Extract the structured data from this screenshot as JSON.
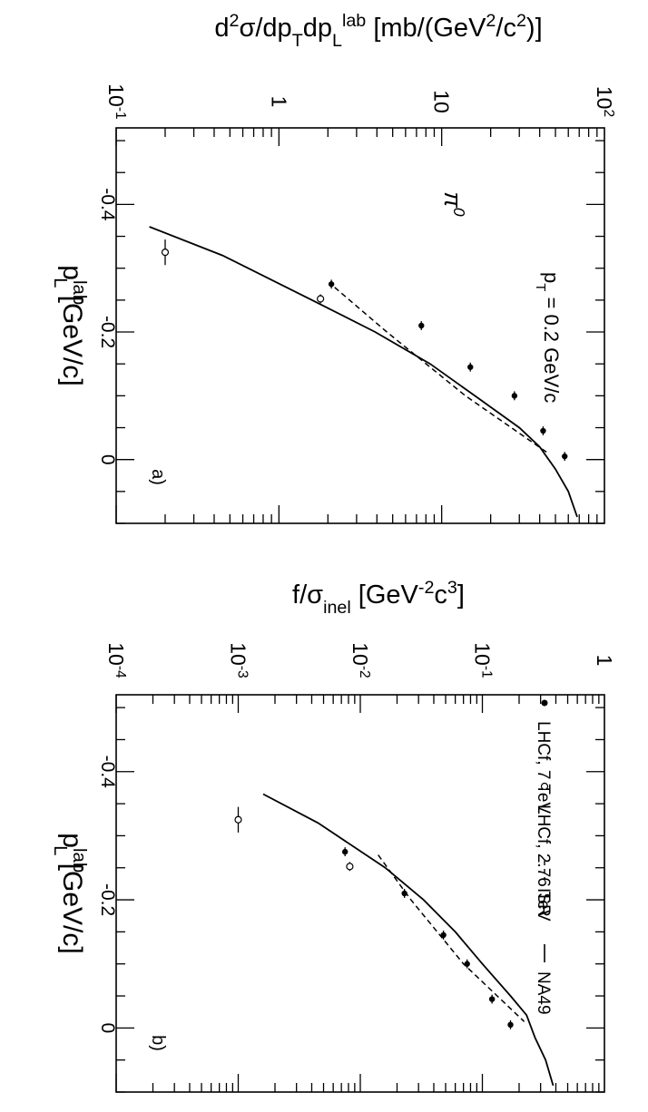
{
  "chart_data": [
    {
      "panel": "a",
      "type": "scatter",
      "panel_label": "a)",
      "xlabel_base": "p",
      "xlabel_sub": "L",
      "xlabel_sup": "lab",
      "xlabel_unit": " [GeV/c]",
      "ylabel_parts": [
        {
          "t": "d",
          "s": "n"
        },
        {
          "t": "2",
          "s": "sup"
        },
        {
          "t": "σ/dp",
          "s": "n"
        },
        {
          "t": "T",
          "s": "sub"
        },
        {
          "t": "dp",
          "s": "n"
        },
        {
          "t": "L",
          "s": "sub"
        },
        {
          "t": "lab",
          "s": "sup"
        },
        {
          "t": " [mb/(GeV",
          "s": "n"
        },
        {
          "t": "2",
          "s": "sup"
        },
        {
          "t": "/c",
          "s": "n"
        },
        {
          "t": "2",
          "s": "sup"
        },
        {
          "t": ")]",
          "s": "n"
        }
      ],
      "xlim": [
        -0.52,
        0.1
      ],
      "ylim": [
        0.1,
        100
      ],
      "yscale": "log",
      "x_ticks": [
        {
          "v": -0.4,
          "label": "-0.4"
        },
        {
          "v": -0.2,
          "label": "-0.2"
        },
        {
          "v": 0,
          "label": "0"
        }
      ],
      "y_ticks": [
        {
          "v": 0.1,
          "label": "10",
          "sup": "-1"
        },
        {
          "v": 1,
          "label": "1",
          "sup": ""
        },
        {
          "v": 10,
          "label": "10",
          "sup": ""
        },
        {
          "v": 100,
          "label": "10",
          "sup": "2"
        }
      ],
      "annotations": [
        {
          "kind": "particle",
          "text": "π",
          "sup": "0"
        },
        {
          "kind": "pt",
          "text": "p",
          "sub": "T",
          "rest": " = 0.2 GeV/c"
        }
      ],
      "series": [
        {
          "name": "LHCf, 7 TeV",
          "style": "filled",
          "points": [
            [
              -0.275,
              2.1
            ],
            [
              -0.21,
              7.5
            ],
            [
              -0.145,
              15
            ],
            [
              -0.1,
              28
            ],
            [
              -0.045,
              42
            ],
            [
              -0.005,
              57
            ]
          ],
          "xerr": 0.007
        },
        {
          "name": "LHCf, 2.76 TeV",
          "style": "open",
          "points": [
            [
              -0.325,
              0.2
            ],
            [
              -0.252,
              1.8
            ]
          ],
          "xerr_list": [
            0.02,
            0.007
          ]
        },
        {
          "name": "ISR",
          "style": "dashed",
          "points": [
            [
              -0.27,
              2.2
            ],
            [
              -0.2,
              4.6
            ],
            [
              -0.1,
              14
            ],
            [
              -0.01,
              45
            ]
          ]
        },
        {
          "name": "NA49",
          "style": "solid",
          "points": [
            [
              -0.365,
              0.16
            ],
            [
              -0.32,
              0.45
            ],
            [
              -0.25,
              1.6
            ],
            [
              -0.2,
              3.9
            ],
            [
              -0.15,
              8.5
            ],
            [
              -0.1,
              16
            ],
            [
              -0.05,
              30
            ],
            [
              -0.02,
              40
            ],
            [
              0.015,
              50
            ],
            [
              0.05,
              60
            ],
            [
              0.09,
              68
            ]
          ]
        }
      ]
    },
    {
      "panel": "b",
      "type": "scatter",
      "panel_label": "b)",
      "xlabel_base": "p",
      "xlabel_sub": "L",
      "xlabel_sup": "lab",
      "xlabel_unit": " [GeV/c]",
      "ylabel_parts": [
        {
          "t": "f/σ",
          "s": "n"
        },
        {
          "t": "inel",
          "s": "sub"
        },
        {
          "t": " [GeV",
          "s": "n"
        },
        {
          "t": "-2",
          "s": "sup"
        },
        {
          "t": "c",
          "s": "n"
        },
        {
          "t": "3",
          "s": "sup"
        },
        {
          "t": "]",
          "s": "n"
        }
      ],
      "xlim": [
        -0.52,
        0.1
      ],
      "ylim": [
        0.0001,
        1
      ],
      "yscale": "log",
      "x_ticks": [
        {
          "v": -0.4,
          "label": "-0.4"
        },
        {
          "v": -0.2,
          "label": "-0.2"
        },
        {
          "v": 0,
          "label": "0"
        }
      ],
      "y_ticks": [
        {
          "v": 0.0001,
          "label": "10",
          "sup": "-4"
        },
        {
          "v": 0.001,
          "label": "10",
          "sup": "-3"
        },
        {
          "v": 0.01,
          "label": "10",
          "sup": "-2"
        },
        {
          "v": 0.1,
          "label": "10",
          "sup": "-1"
        },
        {
          "v": 1,
          "label": "1",
          "sup": ""
        }
      ],
      "legend": [
        {
          "text": "LHCf, 7 TeV",
          "style": "filled"
        },
        {
          "text": "LHCf, 2.76 TeV",
          "style": "open"
        },
        {
          "text": "ISR",
          "style": "dashed"
        },
        {
          "text": "NA49",
          "style": "solid"
        }
      ],
      "series": [
        {
          "name": "LHCf, 7 TeV",
          "style": "filled",
          "points": [
            [
              -0.275,
              0.0075
            ],
            [
              -0.21,
              0.023
            ],
            [
              -0.145,
              0.048
            ],
            [
              -0.1,
              0.075
            ],
            [
              -0.045,
              0.12
            ],
            [
              -0.005,
              0.17
            ]
          ],
          "xerr": 0.007
        },
        {
          "name": "LHCf, 2.76 TeV",
          "style": "open",
          "points": [
            [
              -0.325,
              0.001
            ],
            [
              -0.252,
              0.0082
            ]
          ],
          "xerr_list": [
            0.02,
            0.007
          ]
        },
        {
          "name": "ISR",
          "style": "dashed",
          "points": [
            [
              -0.27,
              0.014
            ],
            [
              -0.2,
              0.026
            ],
            [
              -0.1,
              0.07
            ],
            [
              -0.01,
              0.22
            ]
          ]
        },
        {
          "name": "NA49",
          "style": "solid",
          "points": [
            [
              -0.365,
              0.0016
            ],
            [
              -0.32,
              0.0045
            ],
            [
              -0.25,
              0.016
            ],
            [
              -0.2,
              0.033
            ],
            [
              -0.15,
              0.06
            ],
            [
              -0.1,
              0.1
            ],
            [
              -0.05,
              0.17
            ],
            [
              -0.02,
              0.23
            ],
            [
              0.015,
              0.27
            ],
            [
              0.05,
              0.33
            ],
            [
              0.09,
              0.38
            ]
          ]
        }
      ]
    }
  ]
}
